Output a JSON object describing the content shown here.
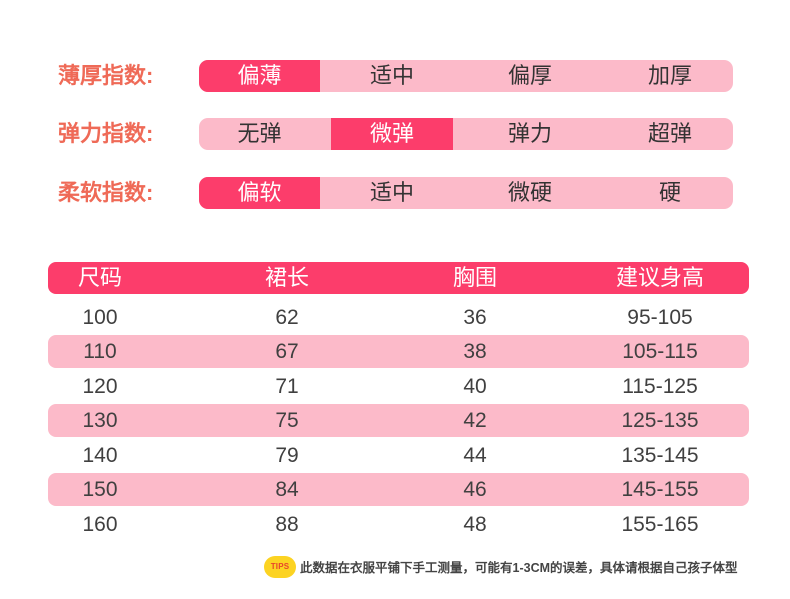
{
  "indices": [
    {
      "label": "薄厚指数:",
      "options": [
        "偏薄",
        "适中",
        "偏厚",
        "加厚"
      ],
      "selected": 0
    },
    {
      "label": "弹力指数:",
      "options": [
        "无弹",
        "微弹",
        "弹力",
        "超弹"
      ],
      "selected": 1
    },
    {
      "label": "柔软指数:",
      "options": [
        "偏软",
        "适中",
        "微硬",
        "硬"
      ],
      "selected": 0
    }
  ],
  "size_table": {
    "headers": [
      "尺码",
      "裙长",
      "胸围",
      "建议身高"
    ],
    "rows": [
      [
        "100",
        "62",
        "36",
        "95-105"
      ],
      [
        "110",
        "67",
        "38",
        "105-115"
      ],
      [
        "120",
        "71",
        "40",
        "115-125"
      ],
      [
        "130",
        "75",
        "42",
        "125-135"
      ],
      [
        "140",
        "79",
        "44",
        "135-145"
      ],
      [
        "150",
        "84",
        "46",
        "145-155"
      ],
      [
        "160",
        "88",
        "48",
        "155-165"
      ]
    ]
  },
  "tips": {
    "badge": "TIPS",
    "text": "此数据在衣服平铺下手工测量，可能有1-3CM的误差，具体请根据自己孩子体型"
  },
  "colors": {
    "accent": "#fc3d6b",
    "stripe": "#fcbac9",
    "label": "#ef6a57",
    "badge": "#fcd322",
    "badge_text": "#e8452b"
  }
}
